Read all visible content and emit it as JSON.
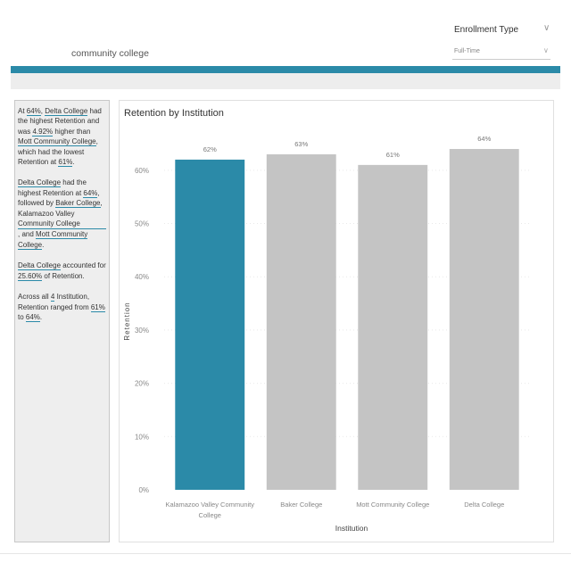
{
  "header": {
    "title": "community college",
    "slicer": {
      "label": "Enrollment Type",
      "value": "Full-Time"
    }
  },
  "colors": {
    "accent": "#2b8aa8",
    "bar_default": "#c4c4c4",
    "banner": "#2b8aa8"
  },
  "narrative": {
    "p1": {
      "t1": "At ",
      "v1": "64%",
      "t2": ", ",
      "v2": "Delta College",
      "t3": " had the highest Retention and was ",
      "v3": "4.92%",
      "t4": " higher than",
      "v4": "Mott Community College",
      "t5": ", which had the lowest Retention at ",
      "v5": "61%",
      "t6": "."
    },
    "p2": {
      "v1": "Delta College",
      "t1": " had the highest Retention at ",
      "v2": "64%",
      "t2": ", followed by ",
      "v3": "Baker College",
      "t3": ",",
      "v4": "Kalamazoo Valley Community College",
      "t4": ", and ",
      "v5": "Mott Community College",
      "t5": "."
    },
    "p3": {
      "v1": "Delta College",
      "t1": " accounted for ",
      "v2": "25.60%",
      "t2": " of Retention."
    },
    "p4": {
      "t1": "Across all ",
      "v1": "4",
      "t2": " Institution, Retention ranged from ",
      "v2": "61%",
      "t3": " to ",
      "v3": "64%",
      "t4": "."
    }
  },
  "chart_data": {
    "type": "bar",
    "title": "Retention by Institution",
    "xlabel": "Institution",
    "ylabel": "Retention",
    "categories": [
      "Kalamazoo Valley Community College",
      "Baker College",
      "Mott Community College",
      "Delta College"
    ],
    "category_lines": [
      [
        "Kalamazoo Valley Community",
        "College"
      ],
      [
        "Baker College"
      ],
      [
        "Mott Community College"
      ],
      [
        "Delta College"
      ]
    ],
    "values": [
      62,
      63,
      61,
      64
    ],
    "data_labels": [
      "62%",
      "63%",
      "61%",
      "64%"
    ],
    "highlighted_index": 0,
    "yticks": [
      0,
      10,
      20,
      30,
      40,
      50,
      60
    ],
    "ytick_labels": [
      "0%",
      "10%",
      "20%",
      "30%",
      "40%",
      "50%",
      "60%"
    ],
    "ylim": [
      0,
      65
    ],
    "grid": true
  }
}
